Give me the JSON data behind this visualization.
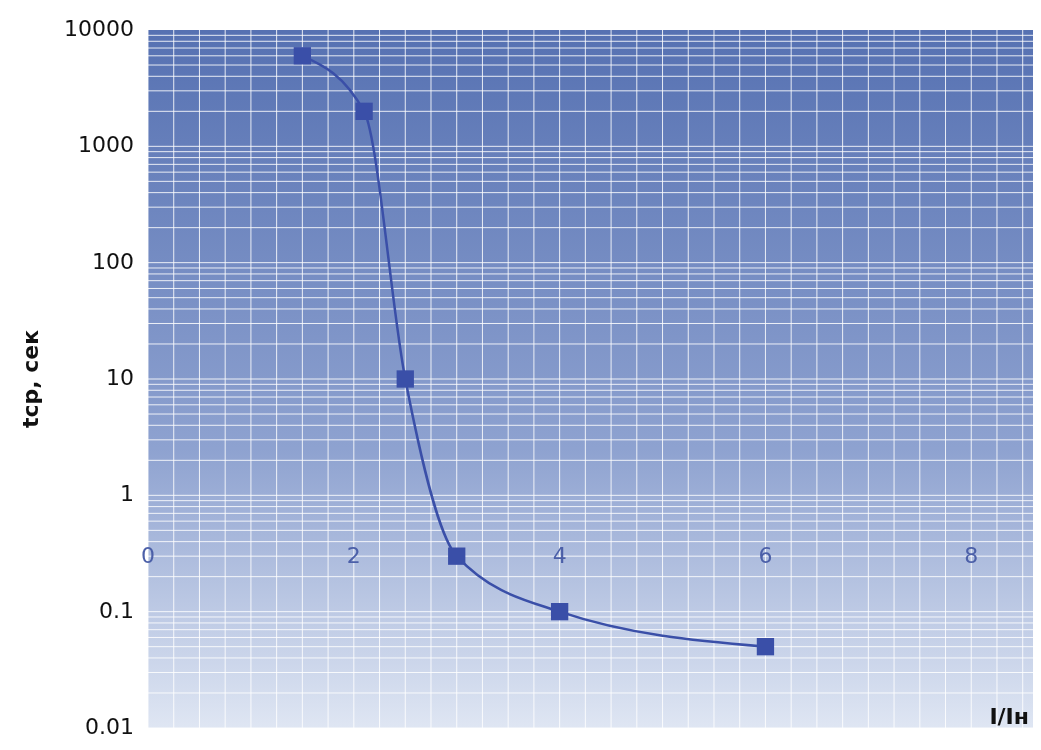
{
  "chart_data": {
    "type": "line",
    "xlabel": "I/Iн",
    "ylabel": "tcр, сек",
    "log": "y",
    "grid": true,
    "marker": "square",
    "line_style": "solid",
    "xlim": [
      0,
      8.6
    ],
    "xticks": [
      0,
      2,
      4,
      6,
      8
    ],
    "ylim": [
      0.01,
      10000
    ],
    "yticks": [
      0.01,
      0.1,
      1,
      10,
      100,
      1000,
      10000
    ],
    "x": [
      1.5,
      2.1,
      2.5,
      3,
      4,
      6
    ],
    "series": [
      {
        "color": "#3a4fa8",
        "values": [
          6000,
          2000,
          10,
          0.3,
          0.1,
          0.05
        ]
      }
    ]
  }
}
